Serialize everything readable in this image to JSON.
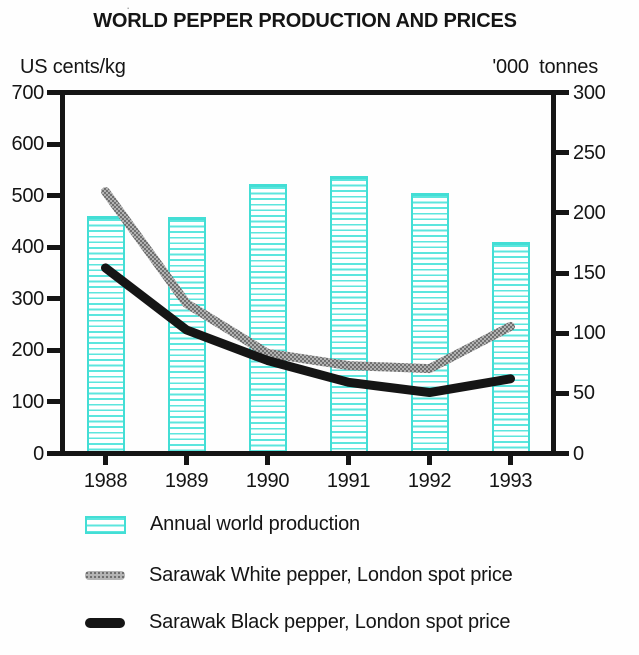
{
  "title": "WORLD PEPPER PRODUCTION AND PRICES",
  "left_axis": {
    "label": "US cents/kg",
    "ticks": [
      700,
      600,
      500,
      400,
      300,
      200,
      100,
      0
    ]
  },
  "right_axis": {
    "label": "'000  tonnes",
    "ticks": [
      300,
      250,
      200,
      150,
      100,
      50,
      0
    ]
  },
  "chart_data": {
    "type": "combo",
    "categories": [
      "1988",
      "1989",
      "1990",
      "1991",
      "1992",
      "1993"
    ],
    "series": [
      {
        "name": "Annual world production",
        "type": "bar",
        "axis": "right",
        "unit": "'000 tonnes",
        "color": "#43ded5",
        "values": [
          198,
          197,
          225,
          232,
          217,
          176
        ]
      },
      {
        "name": "Sarawak White pepper, London spot price",
        "type": "line",
        "axis": "left",
        "unit": "US cents/kg",
        "color": "#a8a8a8",
        "values": [
          510,
          290,
          192,
          168,
          162,
          245
        ]
      },
      {
        "name": "Sarawak Black pepper, London spot price",
        "type": "line",
        "axis": "left",
        "unit": "US cents/kg",
        "color": "#151515",
        "values": [
          360,
          238,
          178,
          135,
          115,
          142
        ]
      }
    ],
    "left_ylim": [
      0,
      700
    ],
    "right_ylim": [
      0,
      300
    ],
    "grid": false,
    "legend_position": "bottom"
  },
  "colors": {
    "bar_cyan": "#43ded5",
    "white_pepper_gray": "#a8a8a8",
    "black_pepper": "#151515",
    "axis": "#151515"
  }
}
